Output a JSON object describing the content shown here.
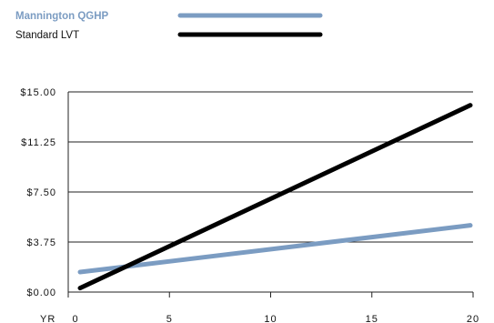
{
  "chart_data": {
    "type": "line",
    "title": "",
    "xlabel": "YR",
    "ylabel": "",
    "x": [
      0,
      20
    ],
    "xlim": [
      0,
      20
    ],
    "ylim": [
      0,
      15
    ],
    "x_ticks": [
      0,
      5,
      10,
      15,
      20
    ],
    "x_tick_labels": [
      "0",
      "5",
      "10",
      "15",
      "20"
    ],
    "y_ticks": [
      0,
      3.75,
      7.5,
      11.25,
      15
    ],
    "y_tick_labels": [
      "$0.00",
      "$3.75",
      "$7.50",
      "$11.25",
      "$15.00"
    ],
    "grid": "horizontal",
    "legend_position": "top-left",
    "series": [
      {
        "name": "Mannington QGHP",
        "color": "#7b9cc2",
        "values": [
          1.5,
          5.0
        ]
      },
      {
        "name": "Standard LVT",
        "color": "#000000",
        "values": [
          0.3,
          14.0
        ]
      }
    ]
  }
}
